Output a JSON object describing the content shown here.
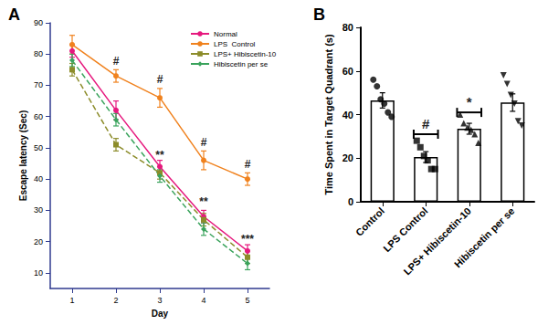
{
  "chart_data": [
    {
      "type": "line",
      "title": "A",
      "xlabel": "Day",
      "ylabel": "Escape latency (Sec)",
      "categories": [
        "1",
        "2",
        "3",
        "4",
        "5"
      ],
      "ylim": [
        5,
        90
      ],
      "yticks": [
        10,
        20,
        30,
        40,
        50,
        60,
        70,
        80,
        90
      ],
      "grid": false,
      "legend": "upper right",
      "series": [
        {
          "name": "Normal",
          "color": "#e6197e",
          "marker": "circle",
          "line_style": "solid",
          "values": [
            81,
            62,
            44,
            28,
            17
          ],
          "errors": [
            2,
            3,
            2,
            2,
            2
          ]
        },
        {
          "name": "LPS  Control",
          "color": "#f0821e",
          "marker": "circle",
          "line_style": "solid",
          "values": [
            83,
            73,
            66,
            46,
            40
          ],
          "errors": [
            3,
            2,
            3,
            3,
            2
          ]
        },
        {
          "name": "LPS+ Hibiscetin-10",
          "color": "#8c8c2a",
          "marker": "square",
          "line_style": "dashed",
          "values": [
            75,
            51,
            42,
            27,
            15
          ],
          "errors": [
            2,
            2,
            2,
            2,
            2
          ]
        },
        {
          "name": "Hibiscetin per se",
          "color": "#3aa35c",
          "marker": "diamond",
          "line_style": "dashed",
          "values": [
            78,
            59,
            41,
            24,
            13
          ],
          "errors": [
            2,
            2,
            2,
            2,
            2
          ]
        }
      ],
      "annotations": [
        {
          "x": "2",
          "y": 76,
          "text": "#"
        },
        {
          "x": "3",
          "y": 70,
          "text": "#"
        },
        {
          "x": "4",
          "y": 50,
          "text": "#"
        },
        {
          "x": "5",
          "y": 43,
          "text": "#"
        },
        {
          "x": "3",
          "y": 46,
          "text": "**"
        },
        {
          "x": "4",
          "y": 31,
          "text": "**"
        },
        {
          "x": "5",
          "y": 19,
          "text": "***"
        }
      ]
    },
    {
      "type": "bar",
      "title": "B",
      "ylabel": "Time Spent in Target Quadrant (s)",
      "categories": [
        "Control",
        "LPS Control",
        "LPS+ Hibiscetin-10",
        "Hibiscetin per se"
      ],
      "ylim": [
        0,
        80
      ],
      "yticks": [
        0,
        20,
        40,
        60,
        80
      ],
      "grid": false,
      "color": "#ffffff",
      "values": [
        46.5,
        20.5,
        33.5,
        45.5
      ],
      "errors": [
        3.5,
        2.5,
        2.5,
        4
      ],
      "points": [
        {
          "marker": "circle",
          "values": [
            56,
            53,
            47,
            45,
            41,
            39
          ]
        },
        {
          "marker": "square",
          "values": [
            28,
            25,
            21,
            19,
            15,
            15
          ]
        },
        {
          "marker": "triangle",
          "values": [
            40,
            36,
            34,
            33,
            31,
            27
          ]
        },
        {
          "marker": "triangle_down",
          "values": [
            58,
            54,
            49,
            45,
            37,
            35
          ]
        }
      ],
      "annotations": [
        {
          "x": "LPS Control",
          "y": 31,
          "text": "#"
        },
        {
          "x": "LPS+ Hibiscetin-10",
          "y": 41,
          "text": "*"
        }
      ]
    }
  ]
}
